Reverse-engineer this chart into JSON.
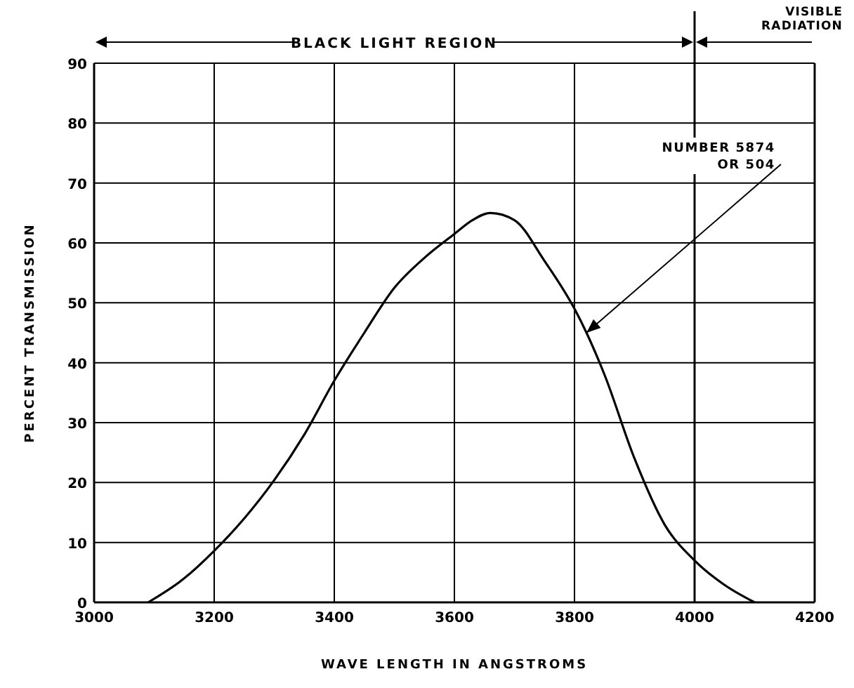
{
  "chart_data": {
    "type": "line",
    "xlabel": "WAVE LENGTH IN ANGSTROMS",
    "ylabel": "PERCENT TRANSMISSION",
    "xlim": [
      3000,
      4200
    ],
    "ylim": [
      0,
      90
    ],
    "xticks": [
      3000,
      3200,
      3400,
      3600,
      3800,
      4000,
      4200
    ],
    "yticks": [
      0,
      10,
      20,
      30,
      40,
      50,
      60,
      70,
      80,
      90
    ],
    "grid": true,
    "marker": "none",
    "line_style": "solid",
    "series": [
      {
        "color": "#000000",
        "x": [
          3090,
          3150,
          3200,
          3250,
          3300,
          3350,
          3400,
          3450,
          3500,
          3550,
          3600,
          3630,
          3660,
          3700,
          3750,
          3800,
          3820,
          3850,
          3900,
          3950,
          4000,
          4050,
          4100
        ],
        "values": [
          0,
          4,
          8.6,
          14,
          20.4,
          28,
          37,
          45,
          52.5,
          57.5,
          61.5,
          63.8,
          65,
          63.8,
          57,
          49,
          45,
          38,
          24,
          13,
          7,
          2.9,
          0
        ]
      }
    ],
    "ref_lines": [
      {
        "axis": "x",
        "value": 4000
      }
    ],
    "annotations": [
      "BLACK LIGHT REGION",
      "VISIBLE RADIATION",
      {
        "text": "NUMBER 5874 OR 504",
        "x": 3820,
        "y": 45
      }
    ]
  }
}
